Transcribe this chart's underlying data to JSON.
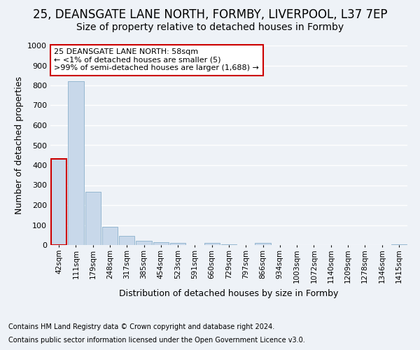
{
  "title1": "25, DEANSGATE LANE NORTH, FORMBY, LIVERPOOL, L37 7EP",
  "title2": "Size of property relative to detached houses in Formby",
  "xlabel": "Distribution of detached houses by size in Formby",
  "ylabel": "Number of detached properties",
  "footer1": "Contains HM Land Registry data © Crown copyright and database right 2024.",
  "footer2": "Contains public sector information licensed under the Open Government Licence v3.0.",
  "annotation_line1": "25 DEANSGATE LANE NORTH: 58sqm",
  "annotation_line2": "← <1% of detached houses are smaller (5)",
  "annotation_line3": ">99% of semi-detached houses are larger (1,688) →",
  "bar_labels": [
    "42sqm",
    "111sqm",
    "179sqm",
    "248sqm",
    "317sqm",
    "385sqm",
    "454sqm",
    "523sqm",
    "591sqm",
    "660sqm",
    "729sqm",
    "797sqm",
    "866sqm",
    "934sqm",
    "1003sqm",
    "1072sqm",
    "1140sqm",
    "1209sqm",
    "1278sqm",
    "1346sqm",
    "1415sqm"
  ],
  "bar_values": [
    430,
    820,
    268,
    90,
    47,
    22,
    15,
    10,
    1,
    10,
    5,
    1,
    10,
    0,
    0,
    0,
    0,
    0,
    0,
    0,
    5
  ],
  "bar_color": "#c8d8ea",
  "bar_edge_color": "#8ab0cc",
  "highlight_bar_index": 0,
  "highlight_edge_color": "#cc0000",
  "ylim": [
    0,
    1000
  ],
  "yticks": [
    0,
    100,
    200,
    300,
    400,
    500,
    600,
    700,
    800,
    900,
    1000
  ],
  "background_color": "#eef2f7",
  "annotation_box_color": "#ffffff",
  "annotation_box_edge": "#cc0000",
  "grid_color": "#ffffff",
  "title1_fontsize": 12,
  "title2_fontsize": 10,
  "ylabel_fontsize": 9,
  "xlabel_fontsize": 9,
  "tick_fontsize": 8,
  "xtick_fontsize": 7.5,
  "footer_fontsize": 7,
  "annotation_fontsize": 8
}
